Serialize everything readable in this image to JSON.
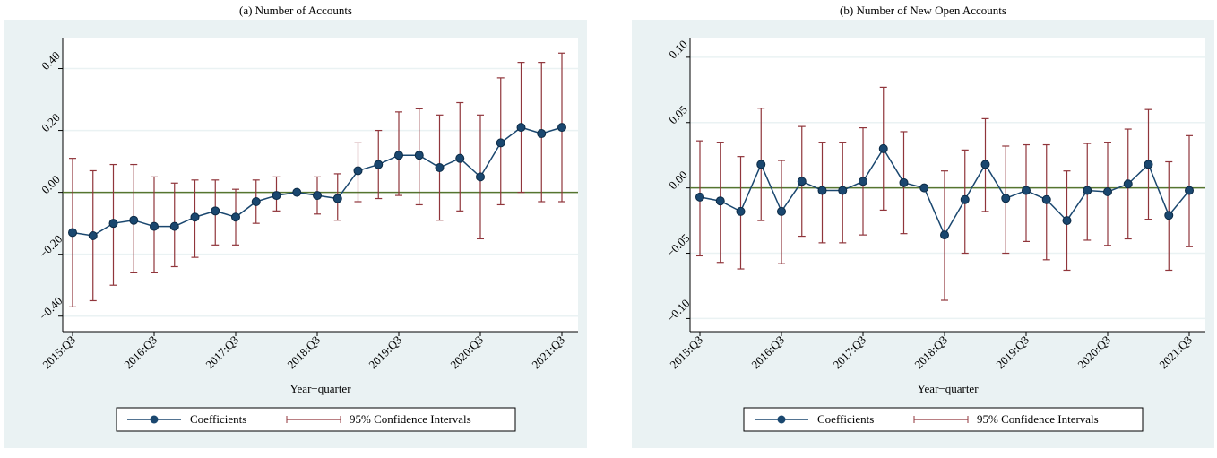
{
  "chart_data": [
    {
      "type": "errorbar-line",
      "title": "(a) Number of Accounts",
      "x_label": "Year−quarter",
      "categories": [
        "2015:Q3",
        null,
        null,
        null,
        "2016:Q3",
        null,
        null,
        null,
        "2017:Q3",
        null,
        null,
        null,
        "2018:Q3",
        null,
        null,
        null,
        "2019:Q3",
        null,
        null,
        null,
        "2020:Q3",
        null,
        null,
        null,
        "2021:Q3"
      ],
      "series": [
        {
          "name": "Coefficients",
          "color": "#1a476f",
          "values": [
            -0.13,
            -0.14,
            -0.1,
            -0.09,
            -0.11,
            -0.11,
            -0.08,
            -0.06,
            -0.08,
            -0.03,
            -0.01,
            0.0,
            -0.01,
            -0.02,
            0.07,
            0.09,
            0.12,
            0.12,
            0.08,
            0.11,
            0.05,
            0.16,
            0.21,
            0.19,
            0.21
          ]
        },
        {
          "name": "95% Confidence Intervals",
          "color": "#90353b",
          "lower": [
            -0.37,
            -0.35,
            -0.3,
            -0.26,
            -0.26,
            -0.24,
            -0.21,
            -0.17,
            -0.17,
            -0.1,
            -0.06,
            0.0,
            -0.07,
            -0.09,
            -0.03,
            -0.02,
            -0.01,
            -0.04,
            -0.09,
            -0.06,
            -0.15,
            -0.04,
            0.0,
            -0.03,
            -0.03
          ],
          "upper": [
            0.11,
            0.07,
            0.09,
            0.09,
            0.05,
            0.03,
            0.04,
            0.04,
            0.01,
            0.04,
            0.05,
            0.0,
            0.05,
            0.06,
            0.16,
            0.2,
            0.26,
            0.27,
            0.25,
            0.29,
            0.25,
            0.37,
            0.42,
            0.42,
            0.45
          ]
        }
      ],
      "reference_line": 0,
      "reference_color": "#55752f",
      "ylim": [
        -0.45,
        0.5
      ],
      "yticks": [
        {
          "value": -0.4,
          "label": "−0.40"
        },
        {
          "value": -0.2,
          "label": "−0.20"
        },
        {
          "value": 0,
          "label": "0.00"
        },
        {
          "value": 0.2,
          "label": "0.20"
        },
        {
          "value": 0.4,
          "label": "0.40"
        }
      ],
      "grid": true,
      "legend": "bottom"
    },
    {
      "type": "errorbar-line",
      "title": "(b) Number of New Open Accounts",
      "x_label": "Year−quarter",
      "categories": [
        "2015:Q3",
        null,
        null,
        null,
        "2016:Q3",
        null,
        null,
        null,
        "2017:Q3",
        null,
        null,
        null,
        "2018:Q3",
        null,
        null,
        null,
        "2019:Q3",
        null,
        null,
        null,
        "2020:Q3",
        null,
        null,
        null,
        "2021:Q3"
      ],
      "series": [
        {
          "name": "Coefficients",
          "color": "#1a476f",
          "values": [
            -0.007,
            -0.01,
            -0.018,
            0.018,
            -0.018,
            0.005,
            -0.002,
            -0.002,
            0.005,
            0.03,
            0.004,
            0,
            -0.036,
            -0.009,
            0.018,
            -0.008,
            -0.002,
            -0.009,
            -0.025,
            -0.002,
            -0.003,
            0.003,
            0.018,
            -0.021,
            -0.002
          ]
        },
        {
          "name": "95% Confidence Intervals",
          "color": "#90353b",
          "lower": [
            -0.052,
            -0.057,
            -0.062,
            -0.025,
            -0.058,
            -0.037,
            -0.042,
            -0.042,
            -0.036,
            -0.017,
            -0.035,
            0,
            -0.086,
            -0.05,
            -0.018,
            -0.05,
            -0.041,
            -0.055,
            -0.063,
            -0.04,
            -0.044,
            -0.039,
            -0.024,
            -0.063,
            -0.045
          ],
          "upper": [
            0.036,
            0.035,
            0.024,
            0.061,
            0.021,
            0.047,
            0.035,
            0.035,
            0.046,
            0.077,
            0.043,
            0,
            0.013,
            0.029,
            0.053,
            0.032,
            0.033,
            0.033,
            0.013,
            0.034,
            0.035,
            0.045,
            0.06,
            0.02,
            0.04
          ]
        }
      ],
      "reference_line": 0,
      "reference_color": "#55752f",
      "ylim": [
        -0.11,
        0.115
      ],
      "yticks": [
        {
          "value": -0.1,
          "label": "−0.10"
        },
        {
          "value": -0.05,
          "label": "−0.05"
        },
        {
          "value": 0,
          "label": "0.00"
        },
        {
          "value": 0.05,
          "label": "0.05"
        },
        {
          "value": 0.1,
          "label": "0.10"
        }
      ],
      "grid": true,
      "legend": "bottom"
    }
  ]
}
